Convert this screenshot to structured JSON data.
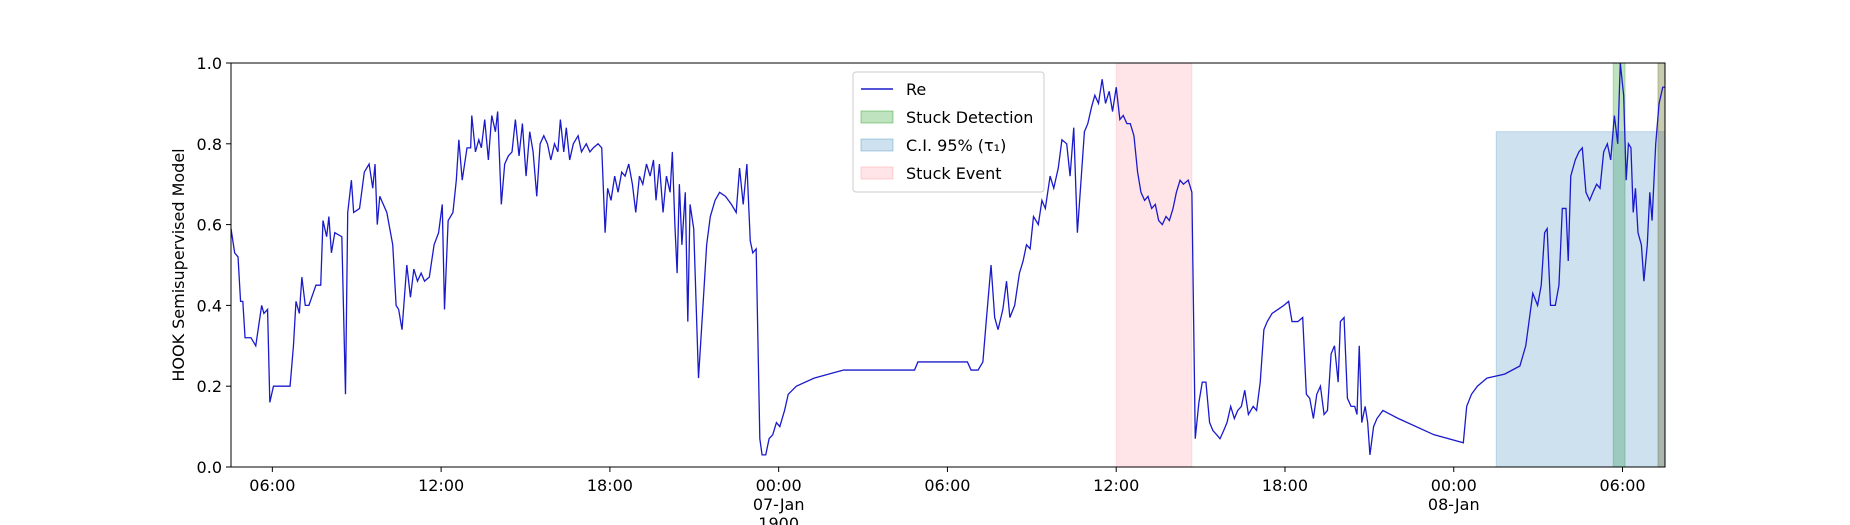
{
  "chart_data": {
    "type": "line",
    "ylabel": "HOOK Semisupervised Model",
    "xlim": [
      4.53,
      55.51
    ],
    "ylim": [
      0,
      1
    ],
    "xticks": [
      {
        "value": 6,
        "label": "06:00"
      },
      {
        "value": 12,
        "label": "12:00"
      },
      {
        "value": 18,
        "label": "18:00"
      },
      {
        "value": 24,
        "label": "00:00\n07-Jan\n1900"
      },
      {
        "value": 30,
        "label": "06:00"
      },
      {
        "value": 36,
        "label": "12:00"
      },
      {
        "value": 42,
        "label": "18:00"
      },
      {
        "value": 48,
        "label": "00:00\n08-Jan"
      },
      {
        "value": 54,
        "label": "06:00"
      }
    ],
    "yticks": [
      {
        "value": 0,
        "label": "0.0"
      },
      0.2,
      0.4,
      0.6,
      0.8,
      {
        "value": 1,
        "label": "1.0"
      }
    ],
    "legend": "upper-center",
    "series": [
      {
        "name": "Re",
        "color": "#1a1acc",
        "kind": "line",
        "x": [
          4.53,
          4.66,
          4.78,
          4.87,
          4.95,
          5.03,
          5.24,
          5.41,
          5.62,
          5.7,
          5.83,
          5.91,
          6.04,
          6.63,
          6.75,
          6.84,
          6.96,
          7.05,
          7.17,
          7.3,
          7.55,
          7.72,
          7.8,
          7.93,
          8.01,
          8.1,
          8.22,
          8.47,
          8.6,
          8.68,
          8.81,
          8.89,
          9.1,
          9.27,
          9.44,
          9.57,
          9.65,
          9.73,
          9.82,
          10.07,
          10.28,
          10.4,
          10.49,
          10.61,
          10.78,
          10.91,
          11.03,
          11.16,
          11.29,
          11.41,
          11.58,
          11.75,
          11.91,
          12.04,
          12.12,
          12.25,
          12.42,
          12.54,
          12.63,
          12.75,
          12.92,
          13.05,
          13.09,
          13.22,
          13.34,
          13.43,
          13.55,
          13.68,
          13.8,
          13.93,
          14.01,
          14.14,
          14.26,
          14.39,
          14.52,
          14.64,
          14.77,
          14.89,
          15.02,
          15.15,
          15.27,
          15.4,
          15.52,
          15.65,
          15.78,
          15.9,
          16.03,
          16.15,
          16.24,
          16.36,
          16.45,
          16.57,
          16.7,
          16.87,
          16.99,
          17.16,
          17.29,
          17.41,
          17.58,
          17.71,
          17.83,
          17.92,
          18.04,
          18.17,
          18.29,
          18.42,
          18.54,
          18.67,
          18.8,
          18.92,
          19.05,
          19.17,
          19.3,
          19.43,
          19.55,
          19.64,
          19.76,
          19.89,
          20.01,
          20.14,
          20.22,
          20.31,
          20.39,
          20.47,
          20.56,
          20.68,
          20.77,
          20.85,
          20.98,
          21.15,
          21.31,
          21.44,
          21.57,
          21.74,
          21.9,
          22.11,
          22.32,
          22.49,
          22.61,
          22.74,
          22.87,
          22.99,
          23.08,
          23.2,
          23.33,
          23.41,
          23.54,
          23.66,
          23.79,
          23.92,
          24.04,
          24.21,
          24.34,
          24.63,
          25.26,
          26.31,
          28.83,
          28.95,
          30.71,
          30.84,
          31.09,
          31.26,
          31.39,
          31.55,
          31.68,
          31.8,
          31.97,
          32.1,
          32.22,
          32.39,
          32.56,
          32.69,
          32.81,
          32.94,
          33.06,
          33.23,
          33.36,
          33.48,
          33.65,
          33.78,
          33.94,
          34.07,
          34.24,
          34.36,
          34.49,
          34.62,
          34.74,
          34.87,
          34.99,
          35.12,
          35.24,
          35.37,
          35.5,
          35.62,
          35.75,
          35.87,
          36.0,
          36.13,
          36.25,
          36.38,
          36.5,
          36.63,
          36.76,
          36.88,
          37.01,
          37.13,
          37.26,
          37.39,
          37.51,
          37.64,
          37.77,
          37.89,
          38.02,
          38.14,
          38.27,
          38.39,
          38.56,
          38.69,
          38.81,
          38.94,
          39.06,
          39.19,
          39.32,
          39.44,
          39.57,
          39.69,
          39.82,
          39.94,
          40.07,
          40.2,
          40.32,
          40.45,
          40.57,
          40.7,
          40.87,
          40.99,
          41.12,
          41.25,
          41.37,
          41.54,
          41.75,
          41.96,
          42.13,
          42.25,
          42.46,
          42.63,
          42.76,
          42.88,
          43.01,
          43.13,
          43.26,
          43.39,
          43.51,
          43.64,
          43.76,
          43.89,
          43.97,
          44.1,
          44.22,
          44.35,
          44.48,
          44.56,
          44.64,
          44.73,
          44.85,
          44.94,
          45.02,
          45.15,
          45.27,
          45.48,
          46.03,
          47.29,
          48.34,
          48.46,
          48.63,
          48.84,
          49.18,
          49.81,
          50.35,
          50.56,
          50.81,
          50.98,
          51.11,
          51.23,
          51.32,
          51.44,
          51.61,
          51.74,
          51.86,
          51.99,
          52.07,
          52.16,
          52.32,
          52.45,
          52.57,
          52.7,
          52.83,
          52.95,
          53.08,
          53.2,
          53.33,
          53.46,
          53.58,
          53.71,
          53.83,
          53.92,
          54.04,
          54.13,
          54.21,
          54.3,
          54.38,
          54.46,
          54.55,
          54.67,
          54.76,
          54.88,
          54.97,
          55.05,
          55.18,
          55.3,
          55.43,
          55.51
        ],
        "values": [
          0.59,
          0.53,
          0.52,
          0.41,
          0.41,
          0.32,
          0.32,
          0.3,
          0.4,
          0.38,
          0.39,
          0.16,
          0.2,
          0.2,
          0.3,
          0.41,
          0.38,
          0.47,
          0.4,
          0.4,
          0.45,
          0.45,
          0.61,
          0.57,
          0.62,
          0.53,
          0.58,
          0.57,
          0.18,
          0.63,
          0.71,
          0.63,
          0.64,
          0.73,
          0.75,
          0.69,
          0.75,
          0.6,
          0.67,
          0.63,
          0.55,
          0.4,
          0.39,
          0.34,
          0.5,
          0.42,
          0.49,
          0.46,
          0.48,
          0.46,
          0.47,
          0.55,
          0.58,
          0.65,
          0.39,
          0.61,
          0.63,
          0.71,
          0.81,
          0.71,
          0.79,
          0.79,
          0.87,
          0.78,
          0.81,
          0.79,
          0.86,
          0.76,
          0.87,
          0.83,
          0.88,
          0.65,
          0.75,
          0.77,
          0.78,
          0.86,
          0.77,
          0.85,
          0.72,
          0.83,
          0.78,
          0.67,
          0.8,
          0.82,
          0.8,
          0.76,
          0.8,
          0.78,
          0.86,
          0.78,
          0.84,
          0.76,
          0.8,
          0.82,
          0.78,
          0.8,
          0.78,
          0.79,
          0.8,
          0.79,
          0.58,
          0.69,
          0.66,
          0.72,
          0.68,
          0.73,
          0.72,
          0.75,
          0.7,
          0.63,
          0.72,
          0.7,
          0.75,
          0.72,
          0.76,
          0.66,
          0.75,
          0.63,
          0.72,
          0.68,
          0.78,
          0.6,
          0.48,
          0.7,
          0.55,
          0.68,
          0.36,
          0.65,
          0.59,
          0.22,
          0.4,
          0.55,
          0.62,
          0.66,
          0.68,
          0.67,
          0.65,
          0.63,
          0.74,
          0.65,
          0.75,
          0.56,
          0.53,
          0.54,
          0.07,
          0.03,
          0.03,
          0.07,
          0.08,
          0.11,
          0.1,
          0.14,
          0.18,
          0.2,
          0.22,
          0.24,
          0.24,
          0.26,
          0.26,
          0.24,
          0.24,
          0.26,
          0.37,
          0.5,
          0.37,
          0.34,
          0.39,
          0.46,
          0.37,
          0.4,
          0.48,
          0.51,
          0.55,
          0.54,
          0.62,
          0.6,
          0.66,
          0.64,
          0.72,
          0.69,
          0.74,
          0.81,
          0.8,
          0.72,
          0.84,
          0.58,
          0.7,
          0.83,
          0.85,
          0.89,
          0.92,
          0.9,
          0.96,
          0.9,
          0.93,
          0.88,
          0.94,
          0.86,
          0.87,
          0.85,
          0.85,
          0.82,
          0.73,
          0.68,
          0.66,
          0.67,
          0.64,
          0.65,
          0.61,
          0.6,
          0.62,
          0.61,
          0.64,
          0.68,
          0.71,
          0.7,
          0.71,
          0.68,
          0.07,
          0.16,
          0.21,
          0.21,
          0.11,
          0.09,
          0.08,
          0.07,
          0.09,
          0.11,
          0.15,
          0.12,
          0.14,
          0.15,
          0.19,
          0.13,
          0.15,
          0.14,
          0.21,
          0.34,
          0.36,
          0.38,
          0.39,
          0.4,
          0.41,
          0.36,
          0.36,
          0.37,
          0.18,
          0.17,
          0.12,
          0.18,
          0.2,
          0.13,
          0.14,
          0.28,
          0.3,
          0.21,
          0.36,
          0.37,
          0.17,
          0.15,
          0.15,
          0.13,
          0.3,
          0.11,
          0.15,
          0.11,
          0.03,
          0.1,
          0.12,
          0.14,
          0.12,
          0.08,
          0.06,
          0.15,
          0.18,
          0.2,
          0.22,
          0.23,
          0.25,
          0.3,
          0.43,
          0.4,
          0.45,
          0.58,
          0.59,
          0.4,
          0.4,
          0.45,
          0.64,
          0.64,
          0.51,
          0.72,
          0.76,
          0.78,
          0.79,
          0.68,
          0.66,
          0.68,
          0.7,
          0.69,
          0.78,
          0.8,
          0.76,
          0.87,
          0.8,
          1.0,
          0.92,
          0.71,
          0.8,
          0.79,
          0.63,
          0.69,
          0.58,
          0.55,
          0.46,
          0.55,
          0.68,
          0.61,
          0.8,
          0.9,
          0.94,
          0.94
        ]
      },
      {
        "name": "Stuck Detection",
        "color": "#2ca02c",
        "alpha": 0.3,
        "kind": "span",
        "spans": [
          [
            53.67,
            54.09
          ],
          [
            55.26,
            55.51
          ]
        ]
      },
      {
        "name": "C.I. 95% (τ₁)",
        "color": "#1f77b4",
        "alpha": 0.22,
        "kind": "span",
        "spans": [
          [
            49.51,
            55.51
          ]
        ],
        "y": [
          0,
          0.83
        ]
      },
      {
        "name": "Stuck Event",
        "color": "#ff3344",
        "alpha": 0.13,
        "kind": "span",
        "spans": [
          [
            36.0,
            38.69
          ],
          [
            55.26,
            55.51
          ]
        ]
      }
    ]
  }
}
